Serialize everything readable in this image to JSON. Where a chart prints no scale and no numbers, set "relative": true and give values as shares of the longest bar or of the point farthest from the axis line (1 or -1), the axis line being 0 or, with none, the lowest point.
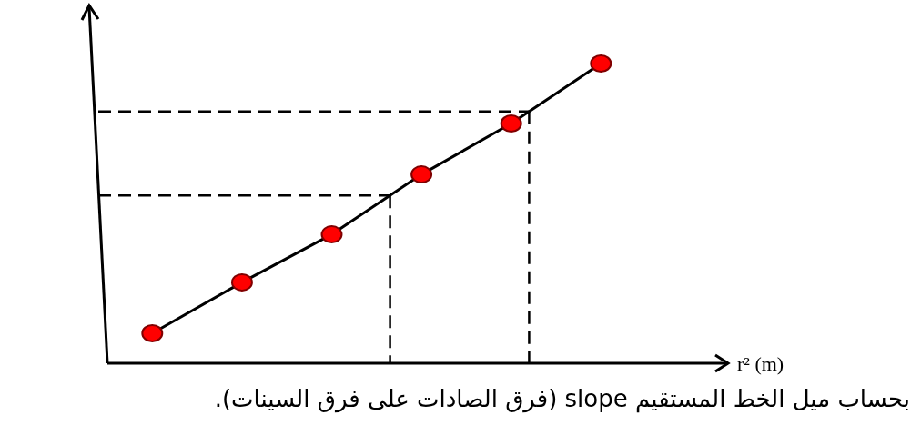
{
  "chart_data": {
    "type": "line",
    "xlabel": "r² (m)",
    "relative": true,
    "categories": [
      null,
      null,
      null,
      null,
      null,
      null
    ],
    "series": [
      {
        "color": "#000000",
        "colors": [
          "#ff0000",
          "#ff0000",
          "#ff0000",
          "#ff0000",
          "#ff0000",
          "#ff0000"
        ],
        "values": [
          0.1,
          0.27,
          0.43,
          0.63,
          0.8,
          1
        ]
      }
    ],
    "marker": "circle",
    "line_style": "solid",
    "ref_lines": [
      {
        "axis": "y",
        "value": 0.56,
        "line_style": "dashed",
        "color": "#000000"
      },
      {
        "axis": "y",
        "value": 0.84,
        "line_style": "dashed",
        "color": "#000000"
      }
    ],
    "annotations": [
      "بحساب ميل الخط المستقيم slope (فرق الصادات على فرق السينات)."
    ]
  }
}
